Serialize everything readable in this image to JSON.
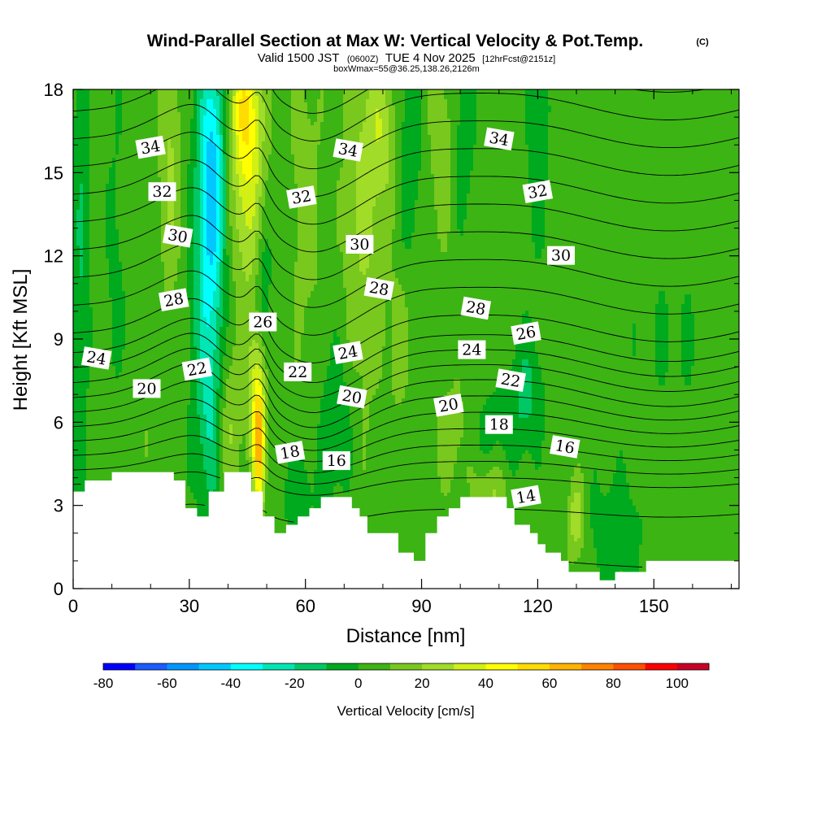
{
  "chart_data": {
    "type": "heatmap",
    "title": "Wind-Parallel Section at Max W: Vertical Velocity & Pot.Temp.",
    "title_mark": "(C)",
    "subtitle": {
      "prefix": "Valid 1500 JST",
      "utc": "(0600Z)",
      "date": "TUE 4 Nov 2025",
      "forecast": "[12hrFcst@2151z]"
    },
    "subtitle2": "boxWmax=55@36.25,138.26,2126m",
    "xlabel": "Distance [nm]",
    "ylabel": "Height [Kft MSL]",
    "xlim": [
      0,
      172
    ],
    "ylim": [
      0,
      18
    ],
    "x_ticks": [
      "0",
      "30",
      "60",
      "90",
      "120",
      "150"
    ],
    "y_ticks": [
      "0",
      "3",
      "6",
      "9",
      "12",
      "15",
      "18"
    ],
    "colorbar": {
      "label": "Vertical Velocity [cm/s]",
      "ticks": [
        "-80",
        "-60",
        "-40",
        "-20",
        "0",
        "20",
        "40",
        "60",
        "80",
        "100"
      ],
      "bounds": [
        -80,
        110
      ],
      "step": 10,
      "colors": [
        "#0000ff",
        "#1a5cff",
        "#0096ff",
        "#00c8ff",
        "#00ffff",
        "#00e6b4",
        "#00c864",
        "#00aa1e",
        "#3cb414",
        "#78c81e",
        "#a0dc28",
        "#d2f014",
        "#ffff00",
        "#ffdc00",
        "#ffb400",
        "#ff8200",
        "#ff5000",
        "#ff0000",
        "#c80028",
        "#a00064",
        "#780096",
        "#500096"
      ]
    },
    "terrain_kft": [
      [
        0,
        3.5
      ],
      [
        3,
        3.5
      ],
      [
        3,
        3.9
      ],
      [
        10,
        3.9
      ],
      [
        10,
        4.2
      ],
      [
        26,
        4.2
      ],
      [
        26,
        3.9
      ],
      [
        29,
        3.9
      ],
      [
        29,
        2.9
      ],
      [
        32,
        2.9
      ],
      [
        32,
        2.6
      ],
      [
        35,
        2.6
      ],
      [
        35,
        3.5
      ],
      [
        39,
        3.5
      ],
      [
        39,
        4.2
      ],
      [
        46,
        4.2
      ],
      [
        46,
        3.5
      ],
      [
        49,
        3.5
      ],
      [
        49,
        2.6
      ],
      [
        52,
        2.6
      ],
      [
        52,
        2.0
      ],
      [
        55,
        2.0
      ],
      [
        55,
        2.3
      ],
      [
        58,
        2.3
      ],
      [
        58,
        2.6
      ],
      [
        61,
        2.6
      ],
      [
        61,
        2.9
      ],
      [
        64,
        2.9
      ],
      [
        64,
        3.3
      ],
      [
        72,
        3.3
      ],
      [
        72,
        2.9
      ],
      [
        74,
        2.9
      ],
      [
        74,
        2.6
      ],
      [
        76,
        2.6
      ],
      [
        76,
        2.0
      ],
      [
        84,
        2.0
      ],
      [
        84,
        1.3
      ],
      [
        88,
        1.3
      ],
      [
        88,
        1.0
      ],
      [
        91,
        1.0
      ],
      [
        91,
        2.0
      ],
      [
        94,
        2.0
      ],
      [
        94,
        2.6
      ],
      [
        97,
        2.6
      ],
      [
        97,
        2.9
      ],
      [
        100,
        2.9
      ],
      [
        100,
        3.3
      ],
      [
        112,
        3.3
      ],
      [
        112,
        2.9
      ],
      [
        114,
        2.9
      ],
      [
        114,
        2.3
      ],
      [
        118,
        2.3
      ],
      [
        118,
        2.0
      ],
      [
        120,
        2.0
      ],
      [
        120,
        1.6
      ],
      [
        122,
        1.6
      ],
      [
        122,
        1.3
      ],
      [
        126,
        1.3
      ],
      [
        126,
        1.0
      ],
      [
        128,
        1.0
      ],
      [
        128,
        0.6
      ],
      [
        136,
        0.6
      ],
      [
        136,
        0.3
      ],
      [
        140,
        0.3
      ],
      [
        140,
        0.6
      ],
      [
        148,
        0.6
      ],
      [
        148,
        1.0
      ],
      [
        172,
        1.0
      ]
    ],
    "fields": {
      "background": 5,
      "features": [
        {
          "kind": "mountain-wave lee downdraft",
          "x": 36,
          "y": 15,
          "sx": 2.5,
          "sy": 3.6,
          "w": -45
        },
        {
          "kind": "downdraft column",
          "x": 34,
          "y": 10,
          "sx": 2.8,
          "sy": 4.5,
          "w": -18
        },
        {
          "kind": "downdraft column",
          "x": 36,
          "y": 6,
          "sx": 2.2,
          "sy": 2.5,
          "w": -18
        },
        {
          "kind": "downdraft column",
          "x": 49,
          "y": 11,
          "sx": 1.6,
          "sy": 2,
          "w": -15
        },
        {
          "kind": "downdraft column",
          "x": 2,
          "y": 11,
          "sx": 1.5,
          "sy": 7,
          "w": -15
        },
        {
          "kind": "downdraft column",
          "x": 11,
          "y": 10,
          "sx": 1.8,
          "sy": 6,
          "w": -8
        },
        {
          "kind": "downdraft column",
          "x": 68,
          "y": 6,
          "sx": 3,
          "sy": 2,
          "w": -14
        },
        {
          "kind": "downdraft column",
          "x": 87,
          "y": 16,
          "sx": 2.6,
          "sy": 3,
          "w": -12
        },
        {
          "kind": "downdraft column",
          "x": 101,
          "y": 16.5,
          "sx": 2,
          "sy": 2.5,
          "w": -12
        },
        {
          "kind": "downdraft column",
          "x": 120,
          "y": 16,
          "sx": 1.8,
          "sy": 2.5,
          "w": -15
        },
        {
          "kind": "downdraft column",
          "x": 117,
          "y": 7,
          "sx": 3,
          "sy": 1.5,
          "w": -18
        },
        {
          "kind": "downdraft column",
          "x": 108,
          "y": 5,
          "sx": 4,
          "sy": 1.5,
          "w": -12
        },
        {
          "kind": "downdraft column",
          "x": 140,
          "y": 2,
          "sx": 5,
          "sy": 1.5,
          "w": -12
        },
        {
          "kind": "downdraft column",
          "x": 58,
          "y": 3.5,
          "sx": 4,
          "sy": 1.2,
          "w": -10
        },
        {
          "kind": "downdraft column",
          "x": 155,
          "y": 9,
          "sx": 8,
          "sy": 3,
          "w": -5
        },
        {
          "kind": "updraft column",
          "x": 45,
          "y": 15,
          "sx": 3,
          "sy": 3,
          "w": 32
        },
        {
          "kind": "updraft column",
          "x": 44,
          "y": 17.5,
          "sx": 3,
          "sy": 1.5,
          "w": 25
        },
        {
          "kind": "updraft column",
          "x": 48,
          "y": 5.2,
          "sx": 1.1,
          "sy": 1.7,
          "w": 55
        },
        {
          "kind": "updraft column",
          "x": 47,
          "y": 7.5,
          "sx": 1.6,
          "sy": 2,
          "w": 20
        },
        {
          "kind": "updraft column",
          "x": 40,
          "y": 6,
          "sx": 2.5,
          "sy": 2,
          "w": 17
        },
        {
          "kind": "updraft column",
          "x": 25,
          "y": 15,
          "sx": 2,
          "sy": 3,
          "w": 17
        },
        {
          "kind": "updraft column",
          "x": 60,
          "y": 14,
          "sx": 3,
          "sy": 4,
          "w": 10
        },
        {
          "kind": "updraft column",
          "x": 75,
          "y": 14,
          "sx": 3.5,
          "sy": 5,
          "w": 17
        },
        {
          "kind": "updraft column",
          "x": 80,
          "y": 16.5,
          "sx": 2.5,
          "sy": 2,
          "w": 18
        },
        {
          "kind": "updraft column",
          "x": 84,
          "y": 9,
          "sx": 2,
          "sy": 2,
          "w": 10
        },
        {
          "kind": "updraft column",
          "x": 95,
          "y": 16,
          "sx": 2.5,
          "sy": 2.5,
          "w": 12
        },
        {
          "kind": "updraft column",
          "x": 108,
          "y": 3.5,
          "sx": 3,
          "sy": 1,
          "w": 22
        },
        {
          "kind": "updraft column",
          "x": 130,
          "y": 2.5,
          "sx": 1.5,
          "sy": 1,
          "w": 24
        },
        {
          "kind": "updraft column",
          "x": 98,
          "y": 5.5,
          "sx": 4,
          "sy": 1.5,
          "w": 10
        },
        {
          "kind": "updraft column",
          "x": 12,
          "y": 6,
          "sx": 6,
          "sy": 1.5,
          "w": 6
        }
      ]
    },
    "potential_temperature_contours": {
      "units": "C",
      "levels": [
        13,
        14,
        15,
        16,
        17,
        18,
        19,
        20,
        21,
        22,
        23,
        24,
        25,
        26,
        27,
        28,
        29,
        30,
        31,
        32,
        33,
        34,
        35
      ],
      "labels": [
        {
          "value": "34",
          "x": 20,
          "y": 15.9
        },
        {
          "value": "32",
          "x": 23,
          "y": 14.3
        },
        {
          "value": "30",
          "x": 27,
          "y": 12.7
        },
        {
          "value": "28",
          "x": 26,
          "y": 10.4
        },
        {
          "value": "26",
          "x": 49,
          "y": 9.6
        },
        {
          "value": "24",
          "x": 6,
          "y": 8.3
        },
        {
          "value": "22",
          "x": 32,
          "y": 7.9
        },
        {
          "value": "20",
          "x": 19,
          "y": 7.2
        },
        {
          "value": "34",
          "x": 71,
          "y": 15.8
        },
        {
          "value": "32",
          "x": 59,
          "y": 14.1
        },
        {
          "value": "30",
          "x": 74,
          "y": 12.4
        },
        {
          "value": "28",
          "x": 79,
          "y": 10.8
        },
        {
          "value": "24",
          "x": 71,
          "y": 8.5
        },
        {
          "value": "22",
          "x": 58,
          "y": 7.8
        },
        {
          "value": "20",
          "x": 72,
          "y": 6.9
        },
        {
          "value": "18",
          "x": 56,
          "y": 4.9
        },
        {
          "value": "16",
          "x": 68,
          "y": 4.6
        },
        {
          "value": "34",
          "x": 110,
          "y": 16.2
        },
        {
          "value": "32",
          "x": 120,
          "y": 14.3
        },
        {
          "value": "30",
          "x": 126,
          "y": 12
        },
        {
          "value": "28",
          "x": 104,
          "y": 10.1
        },
        {
          "value": "26",
          "x": 117,
          "y": 9.2
        },
        {
          "value": "24",
          "x": 103,
          "y": 8.6
        },
        {
          "value": "22",
          "x": 113,
          "y": 7.5
        },
        {
          "value": "20",
          "x": 97,
          "y": 6.6
        },
        {
          "value": "18",
          "x": 110,
          "y": 5.9
        },
        {
          "value": "16",
          "x": 127,
          "y": 5.1
        },
        {
          "value": "14",
          "x": 117,
          "y": 3.3
        }
      ]
    }
  }
}
